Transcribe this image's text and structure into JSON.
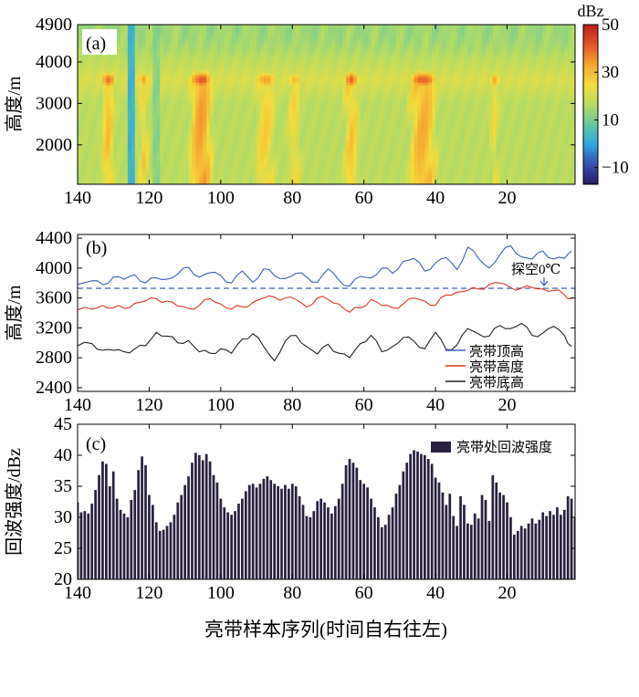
{
  "figure": {
    "xlabel": "亮带样本序列(时间自右往左)"
  },
  "chart_data": [
    {
      "type": "heatmap",
      "panel_label": "(a)",
      "ylabel": "高度/m",
      "xlim": [
        140,
        1
      ],
      "ylim": [
        1050,
        4900
      ],
      "xticks": [
        140,
        120,
        100,
        80,
        60,
        40,
        20
      ],
      "yticks": [
        2000,
        3000,
        4000,
        4900
      ],
      "colorbar": {
        "title": "dBz",
        "min": -17,
        "max": 50,
        "ticks": [
          -10,
          10,
          30,
          50
        ],
        "colors": [
          "#2b1a66",
          "#3a4fb0",
          "#2ea6e0",
          "#64c8a0",
          "#b8dc62",
          "#f4dc3c",
          "#f5a630",
          "#e25528",
          "#b41e1c"
        ]
      },
      "background_dbz": 17,
      "top_layer": {
        "y_from": 4200,
        "y_to": 4900,
        "dbz": 14
      },
      "lower_column_dbz_offset": 3,
      "notches": [
        {
          "x": 125.5,
          "width": 1.2,
          "dbz": 3
        },
        {
          "x": 118.5,
          "width": 1,
          "dbz": 12
        }
      ],
      "bright_band": {
        "center_height": 3580,
        "base_dbz": 21,
        "blobs": [
          {
            "x": 132,
            "dbz": 39,
            "width": 2.5,
            "column_dbz": 28
          },
          {
            "x": 122,
            "dbz": 34,
            "width": 2,
            "column_dbz": 25
          },
          {
            "x": 106,
            "dbz": 42,
            "width": 4,
            "column_dbz": 33
          },
          {
            "x": 88,
            "dbz": 34,
            "width": 4,
            "column_dbz": 26
          },
          {
            "x": 80,
            "dbz": 30,
            "width": 3,
            "column_dbz": 24
          },
          {
            "x": 64,
            "dbz": 39,
            "width": 3,
            "column_dbz": 27
          },
          {
            "x": 44,
            "dbz": 41,
            "width": 5,
            "column_dbz": 31
          },
          {
            "x": 24,
            "dbz": 32,
            "width": 2,
            "column_dbz": 23
          }
        ]
      }
    },
    {
      "type": "line",
      "panel_label": "(b)",
      "ylabel": "高度/m",
      "xlim": [
        140,
        1
      ],
      "ylim": [
        2350,
        4450
      ],
      "xticks": [
        140,
        120,
        100,
        80,
        60,
        40,
        20
      ],
      "yticks": [
        2400,
        2800,
        3200,
        3600,
        4000,
        4400
      ],
      "legend_position": "lower-right",
      "reference_line": {
        "y": 3730,
        "label": "探空0℃",
        "color": "#3a5fb8"
      },
      "series": [
        {
          "name": "亮带顶高",
          "color": "#3a5fb8",
          "x": [
            140,
            136,
            133,
            130,
            127,
            124,
            121,
            118,
            115,
            112,
            109,
            106,
            103,
            100,
            97,
            94,
            91,
            88,
            85,
            82,
            79,
            76,
            73,
            70,
            67,
            64,
            61,
            58,
            55,
            52,
            49,
            46,
            43,
            40,
            37,
            34,
            31,
            28,
            25,
            22,
            19,
            16,
            13,
            10,
            7,
            4,
            2
          ],
          "y": [
            3780,
            3830,
            3780,
            3880,
            3850,
            3910,
            3800,
            3870,
            3850,
            3920,
            4010,
            3880,
            3940,
            3900,
            3800,
            3960,
            3810,
            3990,
            3900,
            3860,
            3930,
            3880,
            3810,
            3990,
            3840,
            3760,
            3890,
            3870,
            4000,
            3930,
            4090,
            4130,
            3960,
            4070,
            4140,
            3980,
            4280,
            4130,
            4000,
            4180,
            4300,
            4150,
            4120,
            4230,
            4120,
            4130,
            4230
          ]
        },
        {
          "name": "亮带高度",
          "color": "#e0361e",
          "x": [
            140,
            136,
            133,
            130,
            127,
            124,
            121,
            118,
            115,
            112,
            109,
            106,
            103,
            100,
            97,
            94,
            91,
            88,
            85,
            82,
            79,
            76,
            73,
            70,
            67,
            64,
            61,
            58,
            55,
            52,
            49,
            46,
            43,
            40,
            37,
            34,
            31,
            28,
            25,
            22,
            19,
            16,
            13,
            10,
            7,
            4,
            2
          ],
          "y": [
            3440,
            3450,
            3500,
            3470,
            3460,
            3530,
            3560,
            3590,
            3560,
            3490,
            3460,
            3500,
            3590,
            3520,
            3450,
            3480,
            3540,
            3600,
            3610,
            3600,
            3580,
            3480,
            3600,
            3580,
            3520,
            3410,
            3470,
            3580,
            3500,
            3470,
            3520,
            3600,
            3560,
            3500,
            3640,
            3680,
            3700,
            3720,
            3780,
            3800,
            3740,
            3730,
            3740,
            3720,
            3700,
            3640,
            3590
          ]
        },
        {
          "name": "亮带底高",
          "color": "#222222",
          "x": [
            140,
            136,
            133,
            130,
            127,
            124,
            121,
            118,
            115,
            112,
            109,
            106,
            103,
            100,
            97,
            94,
            91,
            88,
            85,
            82,
            79,
            76,
            73,
            70,
            67,
            64,
            61,
            58,
            55,
            52,
            49,
            46,
            43,
            40,
            37,
            34,
            31,
            28,
            25,
            22,
            19,
            16,
            13,
            10,
            7,
            4,
            2
          ],
          "y": [
            2960,
            2990,
            2900,
            2900,
            2880,
            2920,
            2960,
            3140,
            3090,
            3000,
            3030,
            2880,
            2860,
            2920,
            2860,
            3050,
            3120,
            2950,
            2760,
            3020,
            3100,
            2950,
            2850,
            2980,
            2860,
            2800,
            2990,
            3100,
            2880,
            2950,
            3070,
            3020,
            2920,
            3140,
            2910,
            2970,
            3190,
            3120,
            3090,
            3230,
            3190,
            3260,
            3100,
            3130,
            3220,
            3100,
            2950
          ]
        }
      ]
    },
    {
      "type": "bar",
      "panel_label": "(c)",
      "ylabel": "回波强度/dBz",
      "xlim": [
        140,
        1
      ],
      "ylim": [
        20,
        45
      ],
      "xticks": [
        140,
        120,
        100,
        80,
        60,
        40,
        20
      ],
      "yticks": [
        20,
        25,
        30,
        35,
        40,
        45
      ],
      "legend_position": "top-right",
      "series": [
        {
          "name": "亮带处回波强度",
          "color": "#2a2140",
          "x": [
            140,
            139,
            138,
            137,
            136,
            135,
            134,
            133,
            132,
            131,
            130,
            129,
            128,
            127,
            126,
            125,
            124,
            123,
            122,
            121,
            120,
            119,
            118,
            117,
            116,
            115,
            114,
            113,
            112,
            111,
            110,
            109,
            108,
            107,
            106,
            105,
            104,
            103,
            102,
            101,
            100,
            99,
            98,
            97,
            96,
            95,
            94,
            93,
            92,
            91,
            90,
            89,
            88,
            87,
            86,
            85,
            84,
            83,
            82,
            81,
            80,
            79,
            78,
            77,
            76,
            75,
            74,
            73,
            72,
            71,
            70,
            69,
            68,
            67,
            66,
            65,
            64,
            63,
            62,
            61,
            60,
            59,
            58,
            57,
            56,
            55,
            54,
            53,
            52,
            51,
            50,
            49,
            48,
            47,
            46,
            45,
            44,
            43,
            42,
            41,
            40,
            39,
            38,
            37,
            36,
            35,
            34,
            33,
            32,
            31,
            30,
            29,
            28,
            27,
            26,
            25,
            24,
            23,
            22,
            21,
            20,
            19,
            18,
            17,
            16,
            15,
            14,
            13,
            12,
            11,
            10,
            9,
            8,
            7,
            6,
            5,
            4,
            3,
            2,
            1
          ],
          "values": [
            32.4,
            30.8,
            31.0,
            30.6,
            32.2,
            34.4,
            36.8,
            39.0,
            38.6,
            35.0,
            37.4,
            33.0,
            31.2,
            30.6,
            30.0,
            32.8,
            34.4,
            37.6,
            39.8,
            38.4,
            33.6,
            32.0,
            29.2,
            27.8,
            28.0,
            28.6,
            29.2,
            30.4,
            32.4,
            33.6,
            35.2,
            36.6,
            38.8,
            40.4,
            40.0,
            39.2,
            40.2,
            39.0,
            36.8,
            35.6,
            33.0,
            31.6,
            30.8,
            30.4,
            31.0,
            32.2,
            33.0,
            34.2,
            35.2,
            35.4,
            34.8,
            35.4,
            36.2,
            36.6,
            36.0,
            35.4,
            35.0,
            34.6,
            35.2,
            34.6,
            35.4,
            35.0,
            33.4,
            32.0,
            30.2,
            30.0,
            31.0,
            32.6,
            33.0,
            32.4,
            31.6,
            30.6,
            31.8,
            33.0,
            35.4,
            38.4,
            39.4,
            38.8,
            38.0,
            36.0,
            35.4,
            34.8,
            33.0,
            31.6,
            30.0,
            28.4,
            28.8,
            30.4,
            31.6,
            33.8,
            35.2,
            37.4,
            38.8,
            40.2,
            40.8,
            40.6,
            40.2,
            40.0,
            39.4,
            38.6,
            36.4,
            35.6,
            34.0,
            32.0,
            33.8,
            30.2,
            28.6,
            33.4,
            32.0,
            29.0,
            28.8,
            30.6,
            29.8,
            33.6,
            32.8,
            29.4,
            36.8,
            35.6,
            34.0,
            33.6,
            32.4,
            30.0,
            27.2,
            27.8,
            28.6,
            28.2,
            29.0,
            29.8,
            29.0,
            29.6,
            30.8,
            30.2,
            31.0,
            30.4,
            31.6,
            30.4,
            31.2,
            33.4,
            33.0,
            30.0
          ]
        }
      ]
    }
  ]
}
